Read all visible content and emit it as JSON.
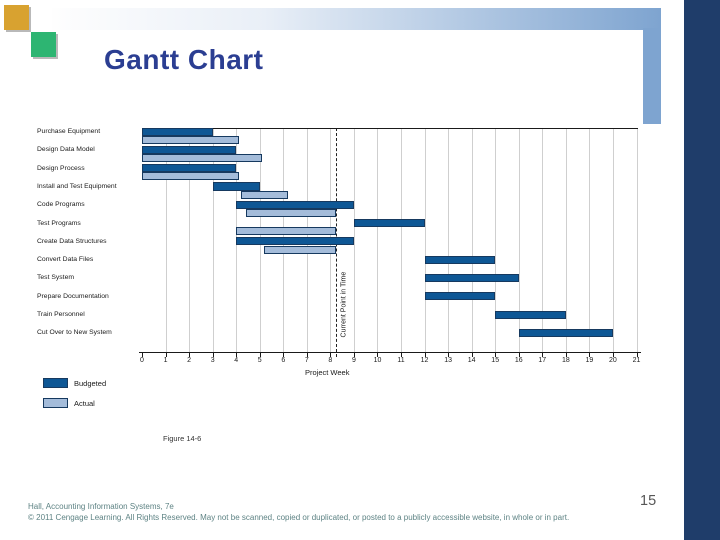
{
  "slide": {
    "title": "Gantt Chart",
    "figure_caption": "Figure 14-6",
    "page_number": "15",
    "footer_line1": "Hall, Accounting Information Systems, 7e",
    "footer_line2": "© 2011 Cengage Learning. All Rights Reserved. May not be scanned, copied or duplicated, or posted to a publicly accessible website, in whole or in part."
  },
  "colors": {
    "budgeted_bar": "#0e5795",
    "actual_bar": "#a4bcda",
    "bar_border": "#16395f",
    "title_text": "#2b3e92",
    "accent_band": "#7ea4d0",
    "right_sidebar": "#1f3d6a",
    "orange_square": "#d8a230",
    "green_square": "#2db572",
    "footer_text": "#5e8384"
  },
  "chart_data": {
    "type": "bar",
    "subtype": "gantt",
    "xlabel": "Project Week",
    "xlim": [
      0,
      21
    ],
    "x_ticks": [
      0,
      1,
      2,
      3,
      4,
      5,
      6,
      7,
      8,
      9,
      10,
      11,
      12,
      13,
      14,
      15,
      16,
      17,
      18,
      19,
      20,
      21
    ],
    "grid": "vertical",
    "current_point": {
      "week": 8.25,
      "label": "Current Point in Time"
    },
    "legend": [
      {
        "name": "Budgeted",
        "color": "#0e5795"
      },
      {
        "name": "Actual",
        "color": "#a4bcda"
      }
    ],
    "tasks": [
      {
        "name": "Purchase Equipment",
        "budgeted": [
          0,
          3
        ],
        "actual": [
          0,
          4.1
        ]
      },
      {
        "name": "Design Data Model",
        "budgeted": [
          0,
          4
        ],
        "actual": [
          0,
          5.1
        ]
      },
      {
        "name": "Design Process",
        "budgeted": [
          0,
          4
        ],
        "actual": [
          0,
          4.1
        ]
      },
      {
        "name": "Install and Test Equipment",
        "budgeted": [
          3,
          5
        ],
        "actual": [
          4.2,
          6.2
        ]
      },
      {
        "name": "Code Programs",
        "budgeted": [
          4,
          9
        ],
        "actual": [
          4.4,
          8.25
        ]
      },
      {
        "name": "Test Programs",
        "budgeted": [
          9,
          12
        ],
        "actual": [
          4,
          8.25
        ]
      },
      {
        "name": "Create Data Structures",
        "budgeted": [
          4,
          9
        ],
        "actual": [
          5.2,
          8.25
        ]
      },
      {
        "name": "Convert Data Files",
        "budgeted": [
          12,
          15
        ],
        "actual": null
      },
      {
        "name": "Test System",
        "budgeted": [
          12,
          16
        ],
        "actual": null
      },
      {
        "name": "Prepare Documentation",
        "budgeted": [
          12,
          15
        ],
        "actual": null
      },
      {
        "name": "Train Personnel",
        "budgeted": [
          15,
          18
        ],
        "actual": null
      },
      {
        "name": "Cut Over to New System",
        "budgeted": [
          16,
          20
        ],
        "actual": null
      }
    ]
  }
}
